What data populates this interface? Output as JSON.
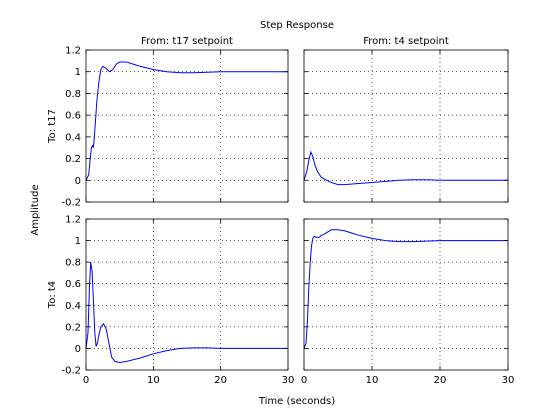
{
  "chart_data": {
    "type": "line",
    "title": "Step Response",
    "xlabel": "Time (seconds)",
    "ylabel": "Amplitude",
    "column_titles": [
      "From: t17 setpoint",
      "From: t4 setpoint"
    ],
    "row_labels": [
      "To: t17",
      "To: t4"
    ],
    "xlim": [
      0,
      30
    ],
    "ylim": [
      -0.2,
      1.2
    ],
    "xticks": [
      0,
      10,
      20,
      30
    ],
    "yticks": [
      -0.2,
      0,
      0.2,
      0.4,
      0.6,
      0.8,
      1,
      1.2
    ],
    "grid": true,
    "line_color": "#0000ff",
    "panels": [
      {
        "row": 0,
        "col": 0,
        "x": [
          0,
          0.4,
          0.6,
          0.8,
          1.0,
          1.1,
          1.3,
          1.6,
          1.9,
          2.2,
          2.5,
          3.0,
          3.5,
          4.0,
          4.5,
          5.0,
          6.0,
          7.0,
          8.0,
          10.0,
          12.0,
          14.0,
          16.0,
          18.0,
          20.0,
          22.0,
          30.0
        ],
        "y": [
          0,
          0.05,
          0.18,
          0.3,
          0.32,
          0.3,
          0.45,
          0.72,
          0.9,
          1.02,
          1.05,
          1.03,
          1.0,
          1.02,
          1.07,
          1.09,
          1.09,
          1.07,
          1.05,
          1.02,
          1.0,
          0.99,
          0.99,
          0.995,
          1.0,
          1.0,
          1.0
        ]
      },
      {
        "row": 0,
        "col": 1,
        "x": [
          0,
          0.4,
          0.7,
          1.0,
          1.3,
          1.6,
          2.0,
          2.5,
          3.0,
          4.0,
          5.0,
          6.0,
          8.0,
          10.0,
          12.0,
          14.0,
          16.0,
          18.0,
          20.0,
          22.0,
          30.0
        ],
        "y": [
          0,
          0.08,
          0.18,
          0.26,
          0.22,
          0.14,
          0.08,
          0.03,
          0.01,
          -0.02,
          -0.04,
          -0.04,
          -0.03,
          -0.02,
          -0.01,
          0.0,
          0.005,
          0.005,
          0.0,
          0.0,
          0.0
        ]
      },
      {
        "row": 1,
        "col": 0,
        "x": [
          0,
          0.3,
          0.5,
          0.7,
          0.9,
          1.1,
          1.3,
          1.5,
          1.7,
          1.9,
          2.2,
          2.6,
          3.0,
          3.4,
          3.8,
          4.3,
          5.0,
          6.0,
          8.0,
          10.0,
          12.0,
          14.0,
          16.0,
          18.0,
          20.0,
          22.0,
          30.0
        ],
        "y": [
          0,
          0.15,
          0.55,
          0.8,
          0.72,
          0.45,
          0.15,
          0.02,
          0.05,
          0.12,
          0.2,
          0.23,
          0.18,
          0.05,
          -0.08,
          -0.12,
          -0.13,
          -0.12,
          -0.09,
          -0.05,
          -0.02,
          0.0,
          0.005,
          0.005,
          0.0,
          0.0,
          0.0
        ]
      },
      {
        "row": 1,
        "col": 1,
        "x": [
          0,
          0.3,
          0.5,
          0.7,
          0.9,
          1.1,
          1.3,
          1.5,
          1.8,
          2.2,
          2.6,
          3.0,
          3.5,
          4.0,
          5.0,
          6.0,
          7.0,
          8.0,
          10.0,
          12.0,
          14.0,
          16.0,
          18.0,
          20.0,
          22.0,
          30.0
        ],
        "y": [
          0,
          0.05,
          0.25,
          0.55,
          0.78,
          0.95,
          1.02,
          1.04,
          1.03,
          1.03,
          1.05,
          1.06,
          1.08,
          1.1,
          1.1,
          1.09,
          1.07,
          1.05,
          1.02,
          1.0,
          0.99,
          0.99,
          0.995,
          1.0,
          1.0,
          1.0
        ]
      }
    ]
  }
}
